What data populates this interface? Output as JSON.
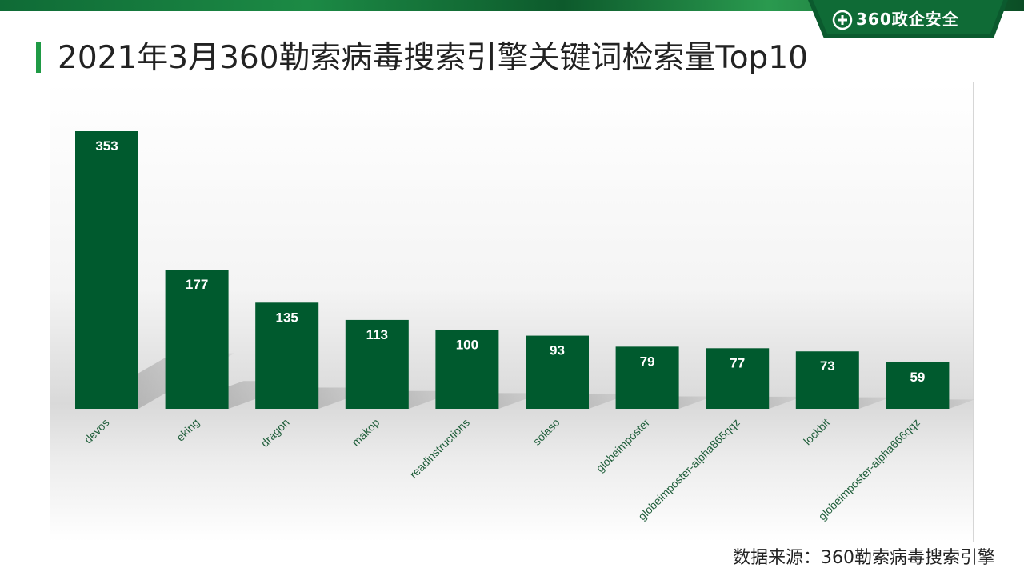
{
  "brand": {
    "logo_text": "360政企安全",
    "primary_color": "#005a2e",
    "accent_color": "#1f9a45"
  },
  "slide": {
    "title": "2021年3月360勒索病毒搜索引擎关键词检索量Top10",
    "source_note": "数据来源：360勒索病毒搜索引擎"
  },
  "chart_data": {
    "type": "bar",
    "title": "2021年3月360勒索病毒搜索引擎关键词检索量Top10",
    "categories": [
      "devos",
      "eking",
      "dragon",
      "makop",
      "readinstructions",
      "solaso",
      "globeimposter",
      "globeimposter-alpha865qqz",
      "lockbit",
      "globeimposter-alpha666qqz"
    ],
    "values": [
      353,
      177,
      135,
      113,
      100,
      93,
      79,
      77,
      73,
      59
    ],
    "ylim": [
      0,
      400
    ],
    "grid": false,
    "legend": "none",
    "data_labels": true,
    "bar_color": "#005a2e",
    "label_color": "#ffffff",
    "category_label_color": "#1f5e3a"
  }
}
